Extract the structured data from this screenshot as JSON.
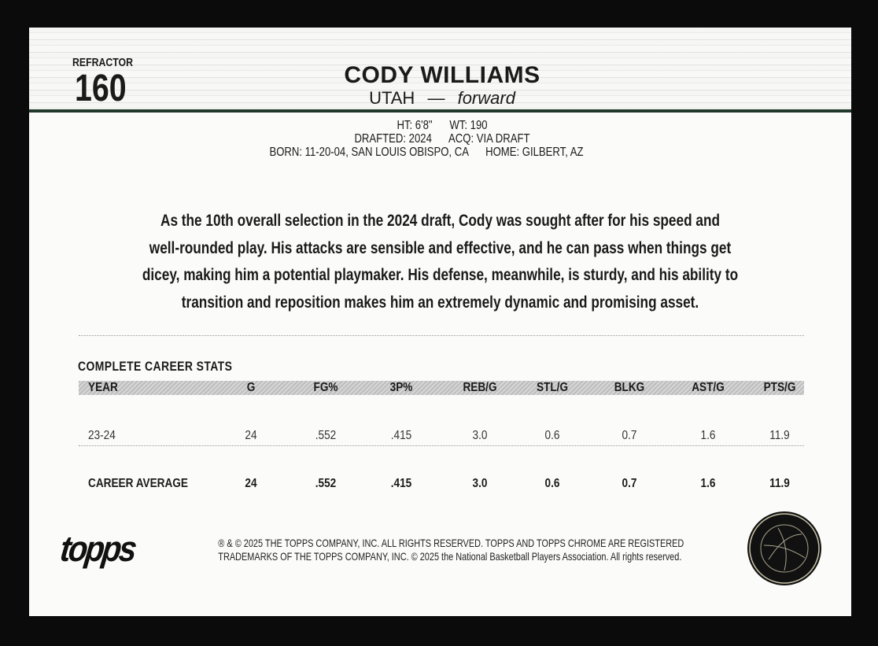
{
  "card": {
    "parallel": "REFRACTOR",
    "number": "160",
    "player_name": "CODY WILLIAMS",
    "team": "UTAH",
    "dash": "—",
    "position": "forward",
    "bio": {
      "line1": "HT: 6'8\"      WT: 190",
      "line2": "DRAFTED: 2024      ACQ: VIA DRAFT",
      "line3": "BORN: 11-20-04, SAN LOUIS OBISPO, CA      HOME: GILBERT, AZ"
    },
    "paragraph": [
      "As the 10th overall selection in the 2024 draft, Cody was sought after for his speed and",
      "well-rounded play. His attacks are sensible and effective, and he can pass when things get",
      "dicey, making him a potential playmaker. His defense, meanwhile, is sturdy, and his ability to",
      "transition and reposition makes him an extremely dynamic and promising asset."
    ],
    "accent_color": "#21392a"
  },
  "stats": {
    "title": "COMPLETE CAREER STATS",
    "headers": [
      "YEAR",
      "G",
      "FG%",
      "3P%",
      "REB/G",
      "STL/G",
      "BLKG",
      "AST/G",
      "PTS/G"
    ],
    "rows": [
      [
        "23-24",
        "24",
        ".552",
        ".415",
        "3.0",
        "0.6",
        "0.7",
        "1.6",
        "11.9"
      ]
    ],
    "career": [
      "CAREER AVERAGE",
      "24",
      ".552",
      ".415",
      "3.0",
      "0.6",
      "0.7",
      "1.6",
      "11.9"
    ]
  },
  "footer": {
    "brand_logo": "topps",
    "legal_line1": "® & © 2025 THE TOPPS COMPANY, INC. ALL RIGHTS RESERVED. TOPPS AND TOPPS CHROME ARE REGISTERED",
    "legal_line2": "TRADEMARKS OF THE TOPPS COMPANY, INC. © 2025 the National Basketball Players Association. All rights reserved.",
    "seal_logo": "NATIONAL BASKETBALL PLAYERS ASSOCIATION"
  }
}
